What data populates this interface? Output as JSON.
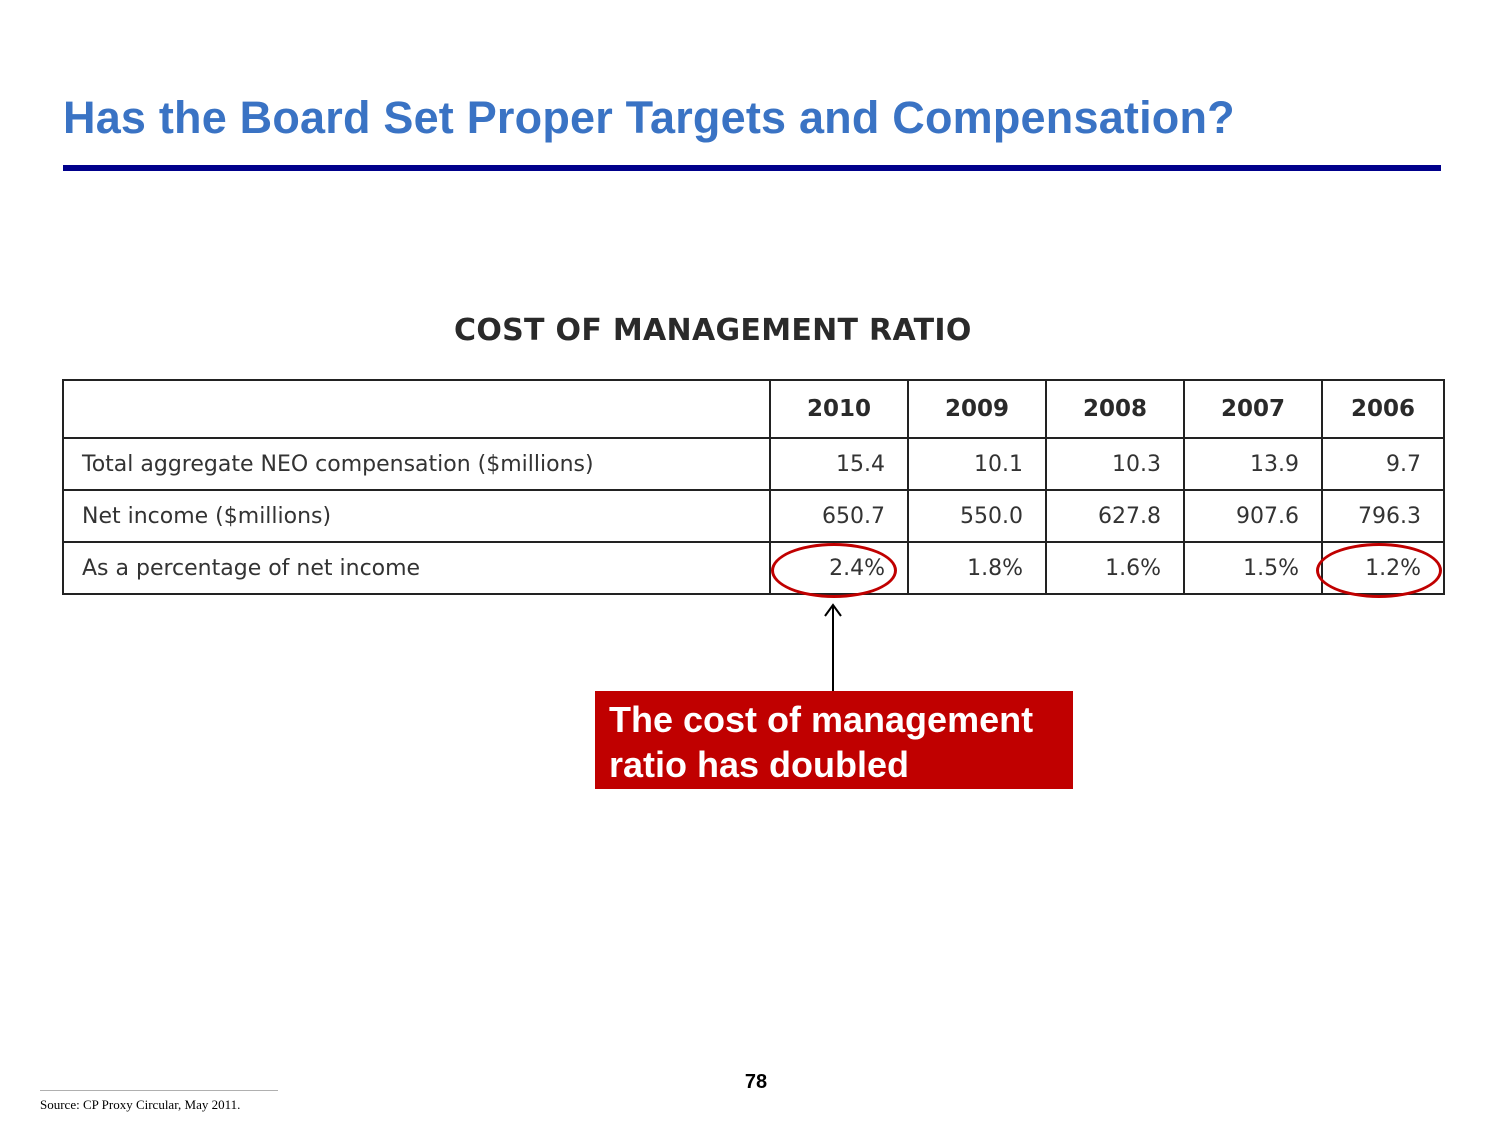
{
  "slide": {
    "title": "Has the Board Set Proper Targets and Compensation?",
    "page_number": "78",
    "source": "Source: CP Proxy Circular, May 2011."
  },
  "table": {
    "heading": "COST OF MANAGEMENT RATIO",
    "columns": [
      "2010",
      "2009",
      "2008",
      "2007",
      "2006"
    ],
    "rows": [
      {
        "label": "Total aggregate NEO compensation ($millions)",
        "values": [
          "15.4",
          "10.1",
          "10.3",
          "13.9",
          "9.7"
        ]
      },
      {
        "label": "Net income ($millions)",
        "values": [
          "650.7",
          "550.0",
          "627.8",
          "907.6",
          "796.3"
        ]
      },
      {
        "label": "As a percentage of net income",
        "values": [
          "2.4%",
          "1.8%",
          "1.6%",
          "1.5%",
          "1.2%"
        ]
      }
    ]
  },
  "callout": {
    "line1": "The cost of management",
    "line2": "ratio has doubled"
  },
  "colors": {
    "title_blue": "#3a73c4",
    "rule_navy": "#00008b",
    "highlight_red": "#c00000"
  }
}
